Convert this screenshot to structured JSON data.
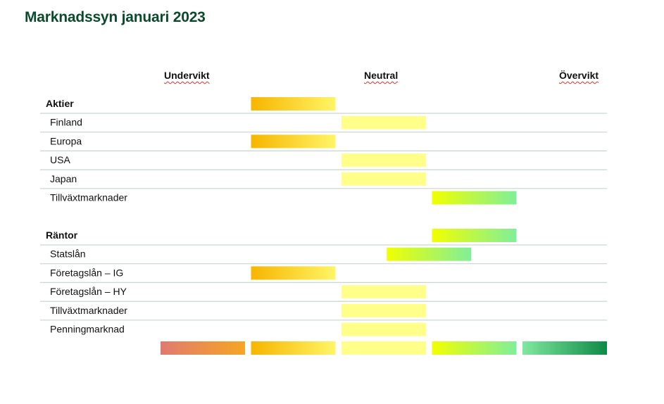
{
  "title": "Marknadssyn januari 2023",
  "scale": {
    "left_label": "Undervikt",
    "center_label": "Neutral",
    "right_label": "Övervikt",
    "levels": [
      -2,
      -1,
      0,
      1,
      2
    ]
  },
  "colors": {
    "level_-2": [
      "#e07a70",
      "#f5a623"
    ],
    "level_-1": [
      "#f7b500",
      "#fff566"
    ],
    "level_0": [
      "#ffff8a",
      "#ffff8a"
    ],
    "level_1": [
      "#f2ff00",
      "#7fef9a"
    ],
    "level_2": [
      "#7fe8a0",
      "#0e8a47"
    ],
    "separator": "#c9d6cf",
    "title": "#0b4a2c"
  },
  "chart_data": {
    "type": "table",
    "categories": [
      "Undervikt",
      "Neutral",
      "Övervikt"
    ],
    "groups": [
      {
        "name": "Aktier",
        "value": -1,
        "items": [
          {
            "name": "Finland",
            "value": 0
          },
          {
            "name": "Europa",
            "value": -1
          },
          {
            "name": "USA",
            "value": 0
          },
          {
            "name": "Japan",
            "value": 0
          },
          {
            "name": "Tillväxtmarknader",
            "value": 1
          }
        ]
      },
      {
        "name": "Räntor",
        "value": 1,
        "items": [
          {
            "name": "Statslån",
            "value": 0.5
          },
          {
            "name": "Företagslån – IG",
            "value": -1
          },
          {
            "name": "Företagslån – HY",
            "value": 0
          },
          {
            "name": "Tillväxtmarknader",
            "value": 0
          },
          {
            "name": "Penningmarknad",
            "value": 0
          }
        ]
      }
    ]
  }
}
